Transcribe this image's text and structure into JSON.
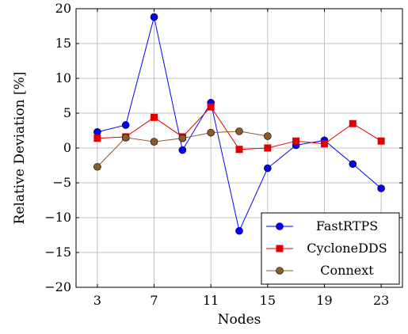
{
  "chart_data": {
    "type": "line",
    "xlabel": "Nodes",
    "ylabel": "Relative Deviation [%]",
    "xlim": [
      1.5,
      24.5
    ],
    "ylim": [
      -20,
      20
    ],
    "xticks": [
      3,
      7,
      11,
      15,
      19,
      23
    ],
    "yticks": [
      -20,
      -15,
      -10,
      -5,
      0,
      5,
      10,
      15,
      20
    ],
    "xtick_labels": [
      "3",
      "7",
      "11",
      "15",
      "19",
      "23"
    ],
    "ytick_labels": [
      "−20",
      "−15",
      "−10",
      "−5",
      "0",
      "5",
      "10",
      "15",
      "20"
    ],
    "grid": true,
    "legend_position": "bottom-right",
    "series": [
      {
        "name": "FastRTPS",
        "color": "#0000ff",
        "marker": "circle",
        "x": [
          3,
          5,
          7,
          9,
          11,
          13,
          15,
          17,
          19,
          21,
          23
        ],
        "y": [
          2.3,
          3.3,
          18.8,
          -0.3,
          6.5,
          -11.9,
          -2.9,
          0.4,
          1.1,
          -2.3,
          -5.8
        ]
      },
      {
        "name": "CycloneDDS",
        "color": "#e00000",
        "marker": "square",
        "x": [
          3,
          5,
          7,
          9,
          11,
          13,
          15,
          17,
          19,
          21,
          23
        ],
        "y": [
          1.4,
          1.6,
          4.4,
          1.6,
          5.9,
          -0.2,
          0.0,
          1.0,
          0.6,
          3.5,
          1.0
        ]
      },
      {
        "name": "Connext",
        "color": "#8b5a2b",
        "marker": "circle",
        "x": [
          3,
          5,
          7,
          9,
          11,
          13,
          15
        ],
        "y": [
          -2.7,
          1.5,
          0.9,
          1.4,
          2.2,
          2.4,
          1.7
        ]
      }
    ]
  }
}
